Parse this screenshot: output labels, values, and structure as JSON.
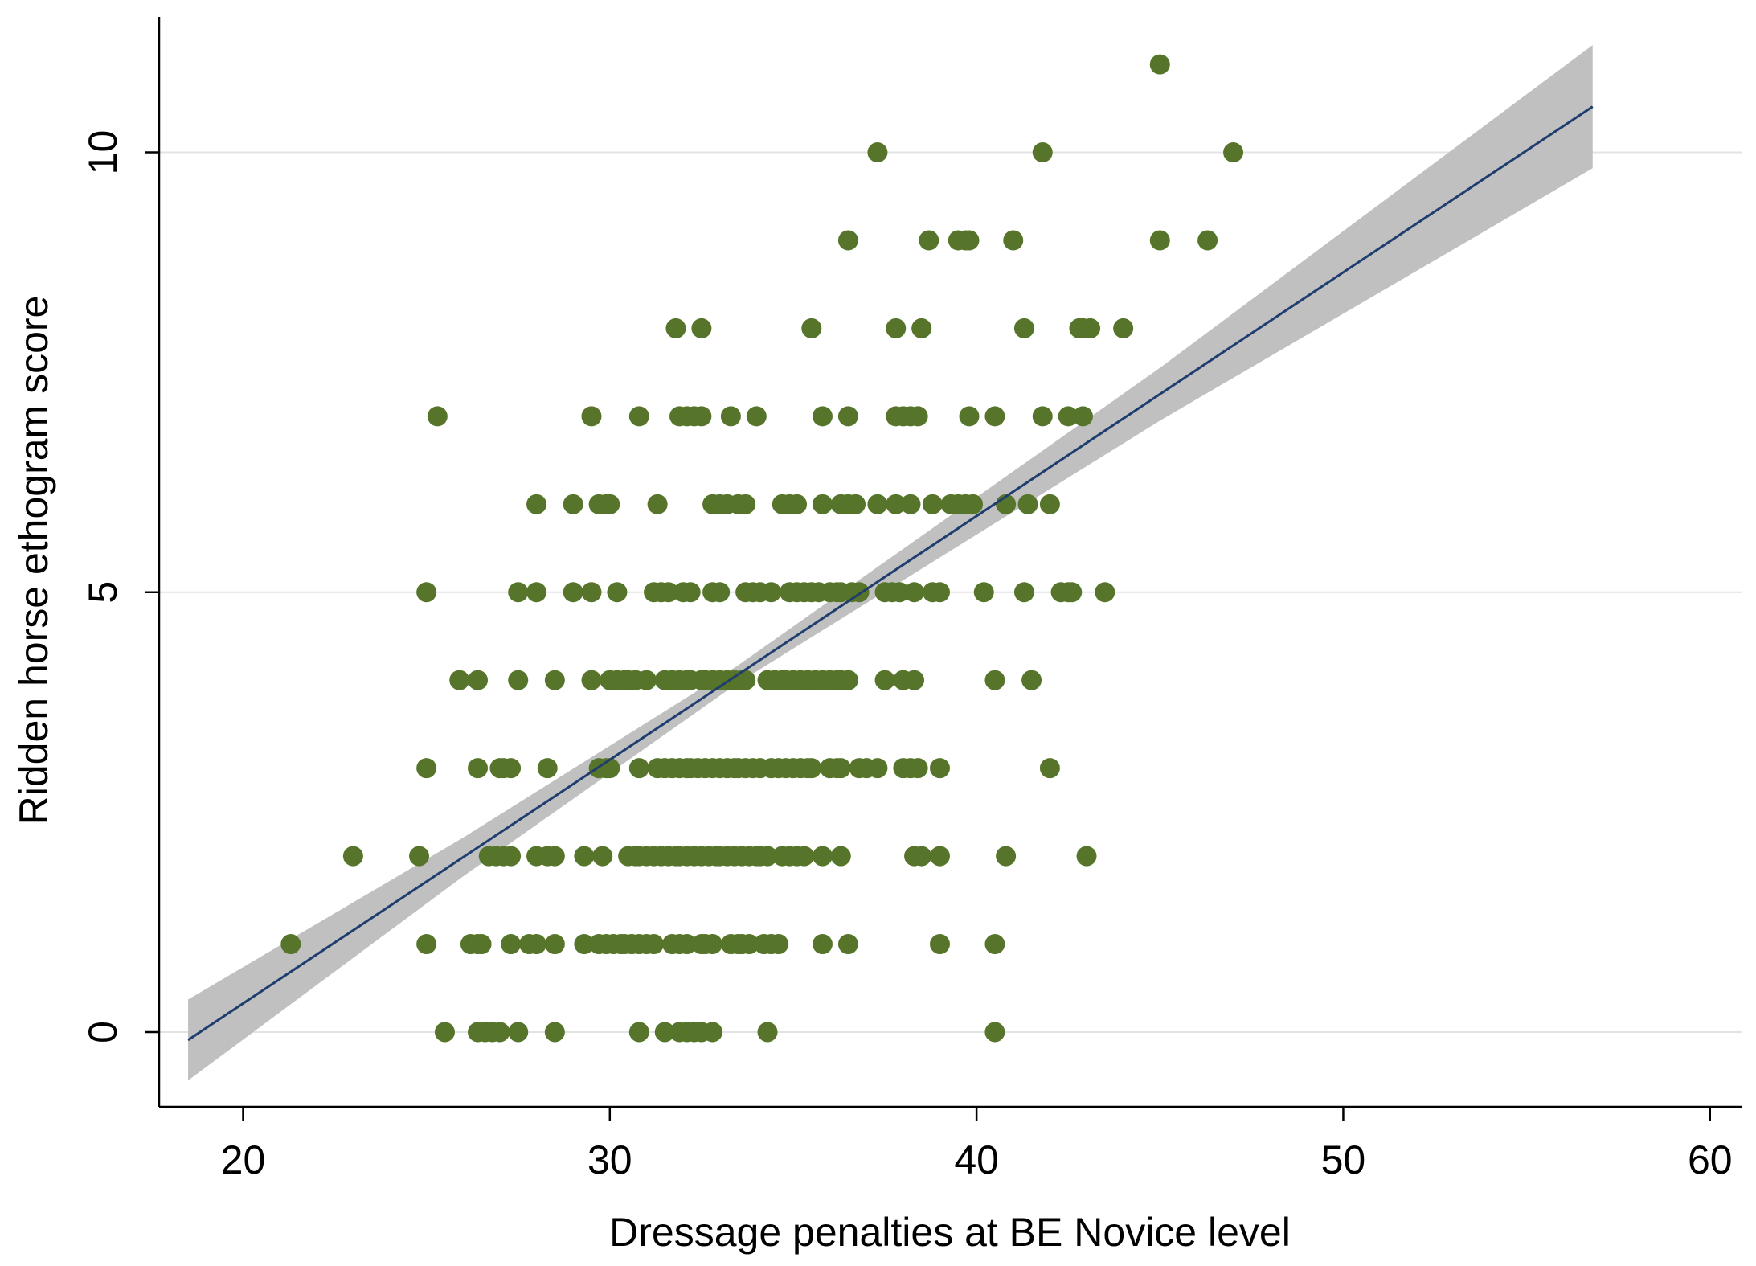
{
  "chart_data": {
    "type": "scatter",
    "xlabel": "Dressage penalties at BE Novice level",
    "ylabel": "Ridden horse ethogram score",
    "xlim": [
      17.71,
      60.86
    ],
    "ylim": [
      -0.85,
      11.54
    ],
    "xticks": [
      20,
      30,
      40,
      50,
      60
    ],
    "yticks": [
      0,
      5,
      10
    ],
    "grid": true,
    "points": {
      "color": "#56752a",
      "x": [
        45.0,
        37.3,
        41.8,
        47.0,
        36.5,
        38.7,
        39.5,
        39.7,
        39.8,
        41.0,
        45.0,
        46.3,
        31.8,
        32.5,
        35.5,
        37.8,
        38.5,
        41.3,
        42.8,
        42.9,
        43.1,
        44.0,
        25.3,
        29.5,
        30.8,
        31.9,
        32.1,
        32.3,
        32.5,
        33.3,
        34.0,
        35.8,
        36.5,
        37.8,
        38.0,
        38.2,
        38.4,
        39.8,
        40.5,
        41.8,
        42.5,
        42.9,
        28.0,
        29.0,
        29.7,
        29.9,
        30.0,
        31.3,
        32.8,
        33.0,
        33.2,
        33.5,
        33.7,
        34.7,
        34.9,
        35.1,
        35.8,
        36.3,
        36.5,
        36.7,
        37.3,
        37.8,
        38.2,
        38.8,
        39.3,
        39.5,
        39.7,
        39.9,
        40.8,
        41.4,
        42.0,
        25.0,
        27.5,
        28.0,
        29.0,
        29.5,
        30.2,
        31.2,
        31.4,
        31.6,
        32.0,
        32.2,
        32.8,
        33.0,
        33.7,
        33.9,
        34.1,
        34.4,
        34.9,
        35.1,
        35.3,
        35.5,
        35.7,
        36.0,
        36.2,
        36.3,
        36.6,
        36.8,
        37.5,
        37.7,
        37.9,
        38.3,
        38.8,
        39.0,
        40.2,
        41.3,
        42.3,
        42.5,
        42.6,
        43.5,
        25.9,
        26.4,
        27.5,
        28.5,
        29.5,
        30.0,
        30.2,
        30.4,
        30.5,
        30.7,
        31.0,
        31.5,
        31.7,
        31.9,
        32.1,
        32.2,
        32.5,
        32.6,
        32.8,
        33.0,
        33.2,
        33.4,
        33.6,
        33.7,
        34.3,
        34.5,
        34.7,
        34.8,
        35.0,
        35.2,
        35.4,
        35.6,
        35.8,
        36.0,
        36.2,
        36.3,
        36.5,
        37.5,
        38.0,
        38.3,
        40.5,
        41.5,
        25.0,
        26.4,
        27.0,
        27.1,
        27.3,
        28.3,
        29.7,
        29.9,
        30.0,
        30.8,
        31.3,
        31.5,
        31.7,
        31.9,
        32.1,
        32.2,
        32.4,
        32.6,
        32.8,
        33.0,
        33.2,
        33.4,
        33.5,
        33.7,
        33.9,
        34.1,
        34.4,
        34.6,
        34.8,
        35.0,
        35.2,
        35.4,
        35.5,
        36.0,
        36.2,
        36.3,
        36.8,
        37.0,
        37.3,
        38.0,
        38.2,
        38.4,
        39.0,
        42.0,
        23.0,
        24.8,
        26.7,
        26.9,
        27.1,
        27.3,
        28.0,
        28.3,
        28.5,
        29.3,
        29.8,
        30.5,
        30.7,
        30.8,
        31.0,
        31.2,
        31.4,
        31.6,
        31.8,
        31.9,
        32.1,
        32.3,
        32.5,
        32.7,
        32.9,
        33.0,
        33.2,
        33.4,
        33.6,
        33.8,
        34.0,
        34.1,
        34.3,
        34.7,
        34.9,
        35.1,
        35.3,
        35.8,
        36.3,
        38.3,
        38.5,
        39.0,
        40.8,
        43.0,
        21.3,
        25.0,
        26.2,
        26.4,
        26.5,
        27.3,
        27.8,
        28.0,
        28.5,
        29.3,
        29.7,
        29.9,
        30.1,
        30.3,
        30.4,
        30.6,
        30.8,
        31.0,
        31.2,
        31.7,
        31.9,
        32.1,
        32.5,
        32.6,
        32.8,
        33.3,
        33.5,
        33.6,
        33.8,
        34.2,
        34.4,
        34.6,
        35.8,
        36.5,
        39.0,
        40.5,
        25.5,
        26.4,
        26.6,
        26.8,
        27.0,
        27.5,
        28.5,
        30.8,
        31.5,
        31.9,
        32.1,
        32.3,
        32.5,
        32.8,
        34.3,
        40.5
      ],
      "values": [
        11,
        10,
        10,
        10,
        9,
        9,
        9,
        9,
        9,
        9,
        9,
        9,
        8,
        8,
        8,
        8,
        8,
        8,
        8,
        8,
        8,
        8,
        7,
        7,
        7,
        7,
        7,
        7,
        7,
        7,
        7,
        7,
        7,
        7,
        7,
        7,
        7,
        7,
        7,
        7,
        7,
        7,
        6,
        6,
        6,
        6,
        6,
        6,
        6,
        6,
        6,
        6,
        6,
        6,
        6,
        6,
        6,
        6,
        6,
        6,
        6,
        6,
        6,
        6,
        6,
        6,
        6,
        6,
        6,
        6,
        6,
        5,
        5,
        5,
        5,
        5,
        5,
        5,
        5,
        5,
        5,
        5,
        5,
        5,
        5,
        5,
        5,
        5,
        5,
        5,
        5,
        5,
        5,
        5,
        5,
        5,
        5,
        5,
        5,
        5,
        5,
        5,
        5,
        5,
        5,
        5,
        5,
        5,
        5,
        5,
        4,
        4,
        4,
        4,
        4,
        4,
        4,
        4,
        4,
        4,
        4,
        4,
        4,
        4,
        4,
        4,
        4,
        4,
        4,
        4,
        4,
        4,
        4,
        4,
        4,
        4,
        4,
        4,
        4,
        4,
        4,
        4,
        4,
        4,
        4,
        4,
        4,
        4,
        4,
        4,
        4,
        4,
        3,
        3,
        3,
        3,
        3,
        3,
        3,
        3,
        3,
        3,
        3,
        3,
        3,
        3,
        3,
        3,
        3,
        3,
        3,
        3,
        3,
        3,
        3,
        3,
        3,
        3,
        3,
        3,
        3,
        3,
        3,
        3,
        3,
        3,
        3,
        3,
        3,
        3,
        3,
        3,
        3,
        3,
        3,
        3,
        2,
        2,
        2,
        2,
        2,
        2,
        2,
        2,
        2,
        2,
        2,
        2,
        2,
        2,
        2,
        2,
        2,
        2,
        2,
        2,
        2,
        2,
        2,
        2,
        2,
        2,
        2,
        2,
        2,
        2,
        2,
        2,
        2,
        2,
        2,
        2,
        2,
        2,
        2,
        2,
        2,
        2,
        2,
        2,
        1,
        1,
        1,
        1,
        1,
        1,
        1,
        1,
        1,
        1,
        1,
        1,
        1,
        1,
        1,
        1,
        1,
        1,
        1,
        1,
        1,
        1,
        1,
        1,
        1,
        1,
        1,
        1,
        1,
        1,
        1,
        1,
        1,
        1,
        1,
        1,
        0,
        0,
        0,
        0,
        0,
        0,
        0,
        0,
        0,
        0,
        0,
        0,
        0,
        0,
        0,
        0
      ]
    },
    "fit": {
      "color": "#1f3d6e",
      "x": [
        18.5,
        56.8
      ],
      "values": [
        -0.09,
        10.52
      ]
    },
    "band": {
      "color": "#c0c0c0",
      "x": [
        18.5,
        26,
        33.5,
        45,
        56.8
      ],
      "lower": [
        -0.55,
        1.77,
        3.97,
        6.95,
        9.82
      ],
      "upper": [
        0.37,
        2.21,
        4.17,
        7.55,
        11.22
      ]
    }
  }
}
